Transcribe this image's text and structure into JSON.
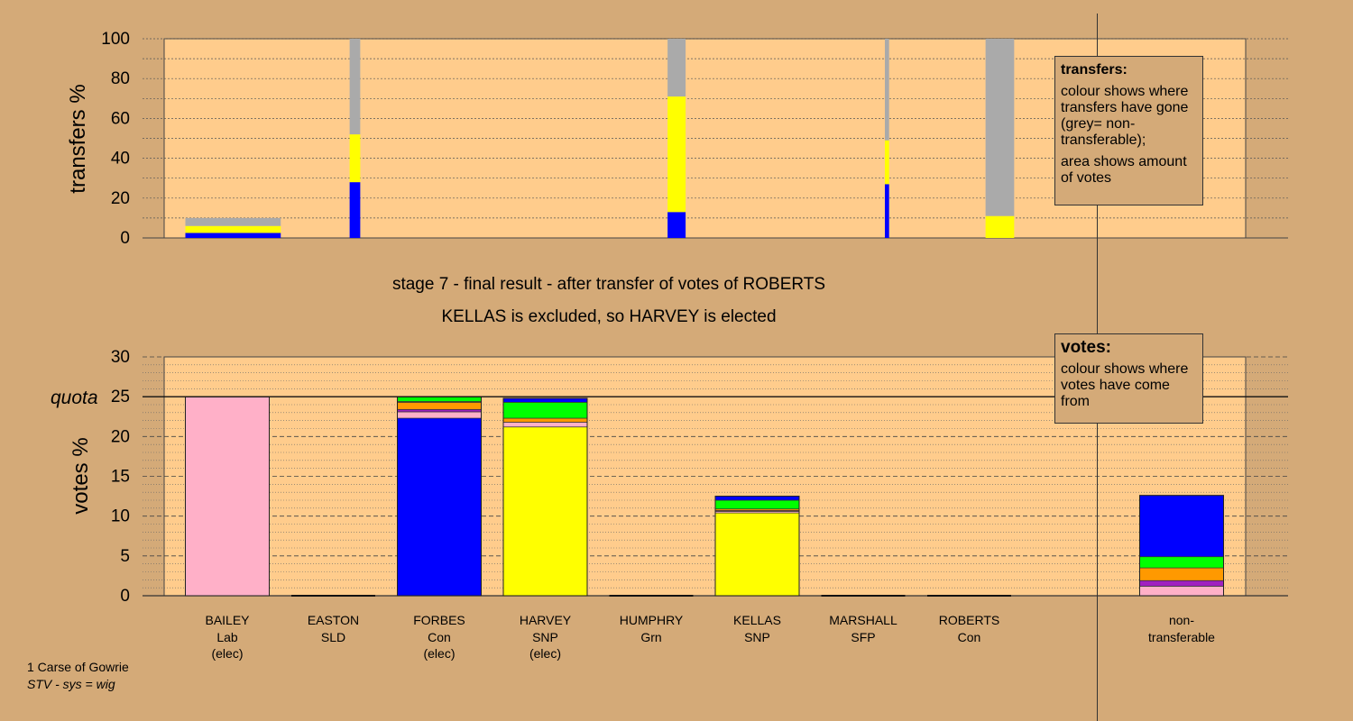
{
  "header": {
    "title": "stage 7 - final result - after transfer of votes of ROBERTS",
    "subtitle": "KELLAS is excluded, so HARVEY is elected"
  },
  "footer": {
    "area": "1 Carse of Gowrie",
    "system": "STV - sys = wig"
  },
  "legends": {
    "transfers": {
      "title": "transfers:",
      "line1": "colour shows where transfers have gone (grey= non-transferable);",
      "line2": "area shows amount of votes"
    },
    "votes": {
      "title": "votes:",
      "line1": "colour shows where votes have come from"
    }
  },
  "colors": {
    "background": "#d4aa78",
    "plot_area": "#ffcc8c",
    "Lab": "#ffb0c8",
    "Con": "#0000ff",
    "SNP": "#ffff00",
    "SLD": "#ff9900",
    "Grn": "#00ff00",
    "SFP": "#a020c0",
    "other": "#c09060",
    "nontransferable": "#aaaaaa"
  },
  "chart_data": [
    {
      "type": "bar",
      "name": "transfers",
      "ylabel": "transfers %",
      "ylim": [
        0,
        100
      ],
      "yticks": [
        0,
        20,
        40,
        60,
        80,
        100
      ],
      "bars": [
        {
          "candidate": "BAILEY",
          "x_from": 0,
          "x_to": 0.9,
          "segments": [
            {
              "color": "Con",
              "value": 2.5
            },
            {
              "color": "SNP",
              "value": 3.5
            },
            {
              "color": "nontransferable",
              "value": 4
            }
          ]
        },
        {
          "candidate": "EASTON",
          "x_from": 1.55,
          "x_to": 1.65,
          "segments": [
            {
              "color": "Con",
              "value": 28
            },
            {
              "color": "SNP",
              "value": 24
            },
            {
              "color": "nontransferable",
              "value": 48
            }
          ]
        },
        {
          "candidate": "HUMPHRY",
          "x_from": 4.55,
          "x_to": 4.72,
          "segments": [
            {
              "color": "Con",
              "value": 13
            },
            {
              "color": "SNP",
              "value": 58
            },
            {
              "color": "nontransferable",
              "value": 29
            }
          ]
        },
        {
          "candidate": "MARSHALL",
          "x_from": 6.6,
          "x_to": 6.64,
          "segments": [
            {
              "color": "Con",
              "value": 27
            },
            {
              "color": "SNP",
              "value": 22
            },
            {
              "color": "nontransferable",
              "value": 51
            }
          ]
        },
        {
          "candidate": "ROBERTS",
          "x_from": 7.55,
          "x_to": 7.82,
          "segments": [
            {
              "color": "SNP",
              "value": 11
            },
            {
              "color": "nontransferable",
              "value": 89
            }
          ]
        }
      ]
    },
    {
      "type": "bar",
      "name": "votes",
      "ylabel": "votes %",
      "ylim": [
        0,
        30
      ],
      "yticks": [
        0,
        5,
        10,
        15,
        20,
        25,
        30
      ],
      "quota": 25,
      "quota_label": "quota",
      "categories": [
        {
          "name": "BAILEY",
          "party": "Lab",
          "status": "(elec)",
          "segments": [
            {
              "color": "Lab",
              "value": 25
            }
          ]
        },
        {
          "name": "EASTON",
          "party": "SLD",
          "status": "",
          "segments": []
        },
        {
          "name": "FORBES",
          "party": "Con",
          "status": "(elec)",
          "segments": [
            {
              "color": "Con",
              "value": 22.3
            },
            {
              "color": "Lab",
              "value": 0.8
            },
            {
              "color": "SFP",
              "value": 0.3
            },
            {
              "color": "SLD",
              "value": 0.9
            },
            {
              "color": "other",
              "value": 0.1
            },
            {
              "color": "Grn",
              "value": 0.6
            }
          ]
        },
        {
          "name": "HARVEY",
          "party": "SNP",
          "status": "(elec)",
          "segments": [
            {
              "color": "SNP",
              "value": 21.2
            },
            {
              "color": "Lab",
              "value": 0.6
            },
            {
              "color": "SLD",
              "value": 0.5
            },
            {
              "color": "Grn",
              "value": 2.0
            },
            {
              "color": "Con",
              "value": 0.5
            }
          ]
        },
        {
          "name": "HUMPHRY",
          "party": "Grn",
          "status": "",
          "segments": []
        },
        {
          "name": "KELLAS",
          "party": "SNP",
          "status": "",
          "segments": [
            {
              "color": "SNP",
              "value": 10.4
            },
            {
              "color": "Lab",
              "value": 0.2
            },
            {
              "color": "SFP",
              "value": 0.1
            },
            {
              "color": "SLD",
              "value": 0.2
            },
            {
              "color": "Grn",
              "value": 1.1
            },
            {
              "color": "Con",
              "value": 0.5
            }
          ]
        },
        {
          "name": "MARSHALL",
          "party": "SFP",
          "status": "",
          "segments": []
        },
        {
          "name": "ROBERTS",
          "party": "Con",
          "status": "",
          "segments": []
        }
      ],
      "nontransferable": {
        "label_line1": "non-",
        "label_line2": "transferable",
        "segments": [
          {
            "color": "Lab",
            "value": 1.2
          },
          {
            "color": "SFP",
            "value": 0.7
          },
          {
            "color": "SLD",
            "value": 1.6
          },
          {
            "color": "Grn",
            "value": 1.4
          },
          {
            "color": "Con",
            "value": 7.7
          }
        ]
      }
    }
  ]
}
